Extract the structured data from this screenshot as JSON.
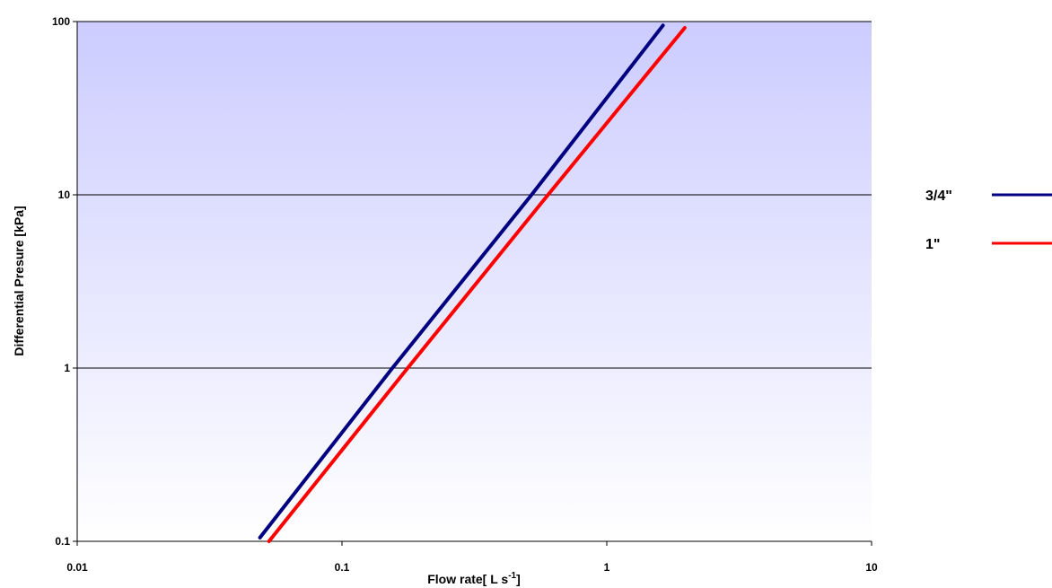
{
  "chart_data": {
    "type": "line",
    "title": "",
    "xlabel": "Flow rate[ L s",
    "xlabel_superscript": "-1",
    "xlabel_suffix": "]",
    "ylabel": "Differential Presure [kPa]",
    "xscale": "log",
    "yscale": "log",
    "xlim": [
      0.01,
      10
    ],
    "ylim": [
      0.1,
      100
    ],
    "x_ticks": [
      0.01,
      0.1,
      1,
      10
    ],
    "x_tick_labels": [
      "0.01",
      "0.1",
      "1",
      "10"
    ],
    "y_ticks": [
      0.1,
      1,
      10,
      100
    ],
    "y_tick_labels": [
      "0.1",
      "1",
      "10",
      "100"
    ],
    "grid": "horizontal major gridlines",
    "legend_position": "right",
    "plot_background": "gradient from #ccccff at top to #ffffff at bottom",
    "series": [
      {
        "name": "3/4\"",
        "color": "#000080",
        "x": [
          0.049,
          0.155,
          0.52,
          1.63
        ],
        "y": [
          0.105,
          1.0,
          10.0,
          95.0
        ]
      },
      {
        "name": "1\"",
        "color": "#ff0000",
        "x": [
          0.053,
          0.177,
          0.6,
          1.97
        ],
        "y": [
          0.1,
          1.0,
          10.0,
          92.0
        ]
      }
    ]
  }
}
